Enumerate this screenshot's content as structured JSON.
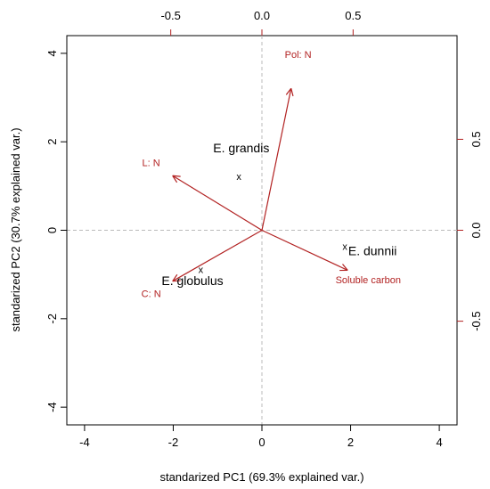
{
  "chart_data": {
    "type": "scatter",
    "subtype": "pca-biplot",
    "xlabel": "standarized PC1 (69.3% explained var.)",
    "ylabel": "standarized PC2 (30.7% explained var.)",
    "xlim": [
      -4.4,
      4.4
    ],
    "ylim": [
      -4.4,
      4.4
    ],
    "x_ticks": [
      "-4",
      "-2",
      "0",
      "2",
      "4"
    ],
    "y_ticks": [
      "-4",
      "-2",
      "0",
      "2",
      "4"
    ],
    "top_ticks": [
      "-0.5",
      "0.0",
      "0.5"
    ],
    "right_ticks": [
      "-0.5",
      "0.0",
      "0.5"
    ],
    "loading_lim": [
      -1.07,
      1.07
    ],
    "grid": false,
    "reference_lines": true,
    "observations": [
      {
        "label": "E. grandis",
        "x": -0.52,
        "y": 1.22
      },
      {
        "label": "E. dunnii",
        "x": 1.87,
        "y": -0.36
      },
      {
        "label": "E. globulus",
        "x": -1.38,
        "y": -0.89
      }
    ],
    "loadings": [
      {
        "label": "Pol: N",
        "x": 0.16,
        "y": 0.78
      },
      {
        "label": "L: N",
        "x": -0.49,
        "y": 0.3
      },
      {
        "label": "C: N",
        "x": -0.49,
        "y": -0.28
      },
      {
        "label": "Soluble carbon",
        "x": 0.47,
        "y": -0.22
      }
    ],
    "colors": {
      "loadings": "#b22222",
      "points": "#000000",
      "reference": "#bbbbbb"
    }
  }
}
